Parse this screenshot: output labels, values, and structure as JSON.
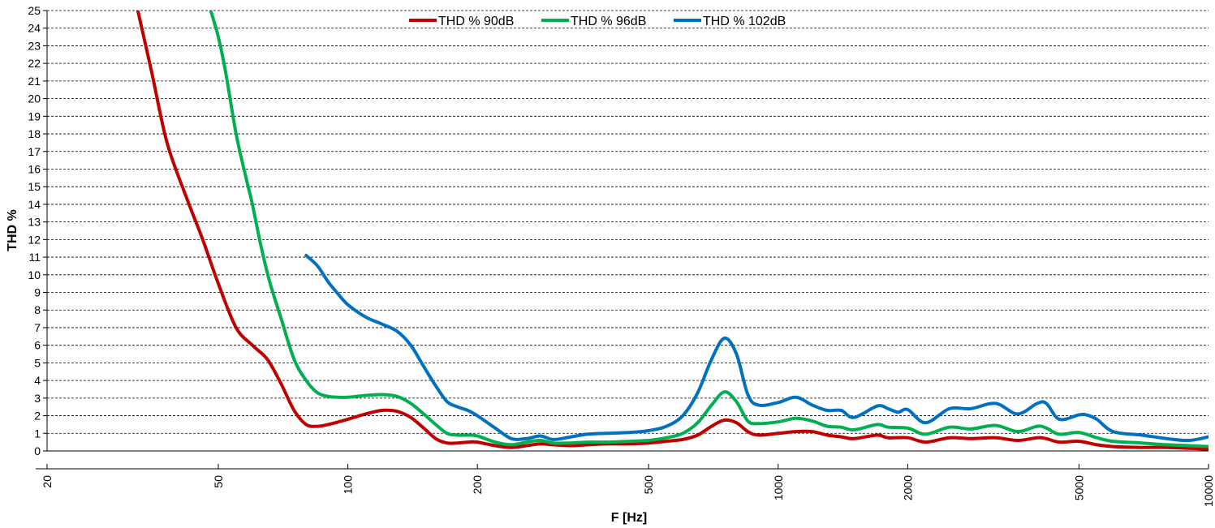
{
  "chart_data": {
    "type": "line",
    "xlabel": "F [Hz]",
    "ylabel": "THD %",
    "x_scale": "log",
    "xlim": [
      20,
      10000
    ],
    "ylim": [
      0,
      25
    ],
    "x_ticks": [
      "20",
      "50",
      "100",
      "200",
      "500",
      "1000",
      "2000",
      "5000",
      "10000"
    ],
    "y_ticks": [
      "0",
      "1",
      "2",
      "3",
      "4",
      "5",
      "6",
      "7",
      "8",
      "9",
      "10",
      "11",
      "12",
      "13",
      "14",
      "15",
      "16",
      "17",
      "18",
      "19",
      "20",
      "21",
      "22",
      "23",
      "24",
      "25"
    ],
    "grid": {
      "horizontal": true,
      "vertical": false,
      "style": "dashed"
    },
    "legend_position": "top-center",
    "series": [
      {
        "name": "THD % 90dB",
        "color": "#C00000",
        "x": [
          32.5,
          35,
          38,
          42,
          46,
          50,
          55,
          60,
          65,
          70,
          75,
          80,
          85,
          90,
          100,
          110,
          120,
          130,
          140,
          150,
          160,
          170,
          180,
          190,
          200,
          220,
          240,
          260,
          280,
          300,
          330,
          360,
          400,
          450,
          500,
          550,
          600,
          650,
          700,
          750,
          800,
          850,
          900,
          1000,
          1100,
          1200,
          1300,
          1400,
          1500,
          1700,
          1800,
          2000,
          2200,
          2500,
          2800,
          3200,
          3600,
          4000,
          4200,
          4500,
          5000,
          5500,
          6000,
          7000,
          8000,
          9000,
          10000
        ],
        "y": [
          25,
          21.5,
          17.5,
          14.5,
          12,
          9.5,
          7,
          6,
          5.2,
          3.8,
          2.3,
          1.5,
          1.4,
          1.5,
          1.8,
          2.1,
          2.3,
          2.25,
          1.9,
          1.3,
          0.7,
          0.45,
          0.45,
          0.5,
          0.5,
          0.3,
          0.2,
          0.3,
          0.4,
          0.35,
          0.3,
          0.35,
          0.4,
          0.4,
          0.45,
          0.55,
          0.65,
          0.9,
          1.4,
          1.75,
          1.6,
          1.1,
          0.9,
          1.0,
          1.1,
          1.1,
          0.9,
          0.8,
          0.7,
          0.9,
          0.75,
          0.75,
          0.5,
          0.75,
          0.7,
          0.75,
          0.6,
          0.75,
          0.7,
          0.5,
          0.55,
          0.35,
          0.25,
          0.2,
          0.2,
          0.15,
          0.1
        ]
      },
      {
        "name": "THD % 96dB",
        "color": "#00B050",
        "x": [
          48,
          50,
          52,
          55,
          58,
          60,
          63,
          66,
          70,
          75,
          80,
          85,
          90,
          95,
          100,
          110,
          120,
          130,
          140,
          150,
          160,
          170,
          180,
          190,
          200,
          220,
          240,
          260,
          280,
          300,
          330,
          360,
          400,
          450,
          500,
          550,
          600,
          650,
          700,
          750,
          800,
          850,
          900,
          1000,
          1100,
          1200,
          1300,
          1400,
          1500,
          1700,
          1800,
          2000,
          2200,
          2500,
          2800,
          3200,
          3600,
          4000,
          4200,
          4500,
          5000,
          5500,
          6000,
          7000,
          8000,
          9000,
          10000
        ],
        "y": [
          25,
          23.5,
          21.5,
          18,
          15.5,
          14,
          11.5,
          9.5,
          7.5,
          5.2,
          4.0,
          3.3,
          3.1,
          3.05,
          3.05,
          3.15,
          3.2,
          3.1,
          2.7,
          2.1,
          1.5,
          1.0,
          0.9,
          0.9,
          0.85,
          0.5,
          0.35,
          0.5,
          0.6,
          0.45,
          0.45,
          0.5,
          0.5,
          0.55,
          0.6,
          0.75,
          1.0,
          1.6,
          2.6,
          3.35,
          2.8,
          1.7,
          1.55,
          1.65,
          1.85,
          1.7,
          1.4,
          1.35,
          1.2,
          1.5,
          1.35,
          1.3,
          0.95,
          1.35,
          1.25,
          1.45,
          1.1,
          1.4,
          1.3,
          0.95,
          1.05,
          0.75,
          0.55,
          0.45,
          0.35,
          0.3,
          0.25
        ]
      },
      {
        "name": "THD % 102dB",
        "color": "#0070C0",
        "x": [
          80,
          85,
          90,
          95,
          100,
          110,
          120,
          130,
          140,
          150,
          160,
          170,
          180,
          190,
          200,
          220,
          240,
          260,
          280,
          300,
          330,
          360,
          400,
          450,
          500,
          550,
          600,
          650,
          700,
          750,
          800,
          850,
          900,
          1000,
          1100,
          1200,
          1300,
          1400,
          1500,
          1700,
          1800,
          1900,
          2000,
          2200,
          2500,
          2800,
          3200,
          3600,
          4000,
          4200,
          4500,
          5000,
          5200,
          5500,
          6000,
          7000,
          8000,
          9000,
          10000
        ],
        "y": [
          11.1,
          10.5,
          9.6,
          8.9,
          8.3,
          7.6,
          7.2,
          6.8,
          6.0,
          4.8,
          3.7,
          2.8,
          2.5,
          2.3,
          2.0,
          1.3,
          0.7,
          0.7,
          0.85,
          0.65,
          0.8,
          0.95,
          1.0,
          1.05,
          1.15,
          1.4,
          2.0,
          3.3,
          5.2,
          6.4,
          5.5,
          3.2,
          2.6,
          2.75,
          3.05,
          2.6,
          2.3,
          2.3,
          1.9,
          2.55,
          2.4,
          2.2,
          2.35,
          1.6,
          2.4,
          2.4,
          2.7,
          2.1,
          2.7,
          2.7,
          1.8,
          2.05,
          2.05,
          1.8,
          1.1,
          0.9,
          0.7,
          0.6,
          0.8
        ]
      }
    ]
  }
}
